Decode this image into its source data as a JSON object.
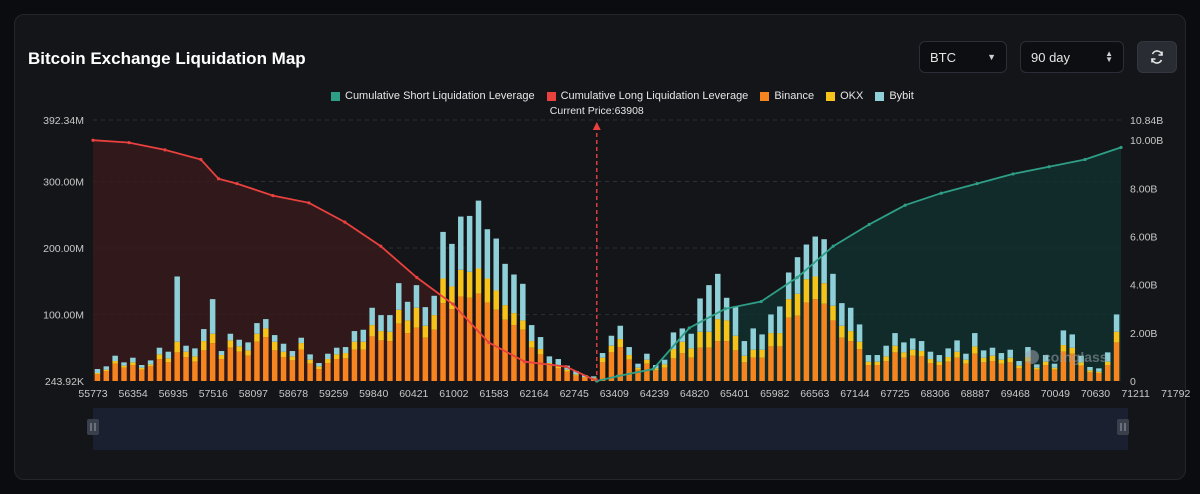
{
  "title": "Bitcoin Exchange Liquidation Map",
  "controls": {
    "symbol": "BTC",
    "period": "90 day",
    "refresh_icon": "refresh-icon"
  },
  "legend": [
    {
      "label": "Cumulative Short Liquidation Leverage",
      "color": "#2e9e86"
    },
    {
      "label": "Cumulative Long Liquidation Leverage",
      "color": "#e8413e"
    },
    {
      "label": "Binance",
      "color": "#f6841f"
    },
    {
      "label": "OKX",
      "color": "#f6c31a"
    },
    {
      "label": "Bybit",
      "color": "#8fd0d8"
    }
  ],
  "watermark": "coinglass",
  "chart_data": {
    "type": "bar",
    "current_price_label": "Current Price:63908",
    "current_price": 63908,
    "x_tick_labels": [
      "55773",
      "56354",
      "56935",
      "57516",
      "58097",
      "58678",
      "59259",
      "59840",
      "60421",
      "61002",
      "61583",
      "62164",
      "62745",
      "63409",
      "64239",
      "64820",
      "65401",
      "65982",
      "66563",
      "67144",
      "67725",
      "68306",
      "68887",
      "69468",
      "70049",
      "70630",
      "71211",
      "71792"
    ],
    "x_range": [
      55773,
      72373
    ],
    "left_axis": {
      "ticks": [
        "392.34M",
        "300.00M",
        "200.00M",
        "100.00M",
        "243.92K"
      ],
      "range": [
        243920,
        392340000
      ]
    },
    "right_axis": {
      "ticks": [
        "10.84B",
        "10.00B",
        "8.00B",
        "6.00B",
        "4.00B",
        "2.00B",
        "0"
      ],
      "range": [
        0,
        10840000000
      ]
    },
    "colors": {
      "binance": "#f6841f",
      "okx": "#f6c31a",
      "bybit": "#8fd0d8",
      "long_line": "#e8413e",
      "short_line": "#2e9e86"
    },
    "long_cumulative_B": [
      [
        55773,
        10.0
      ],
      [
        56354,
        9.9
      ],
      [
        56935,
        9.6
      ],
      [
        57516,
        9.2
      ],
      [
        57800,
        8.4
      ],
      [
        58097,
        8.2
      ],
      [
        58678,
        7.7
      ],
      [
        59259,
        7.4
      ],
      [
        59840,
        6.6
      ],
      [
        60421,
        5.6
      ],
      [
        61002,
        4.3
      ],
      [
        61583,
        3.2
      ],
      [
        62164,
        1.6
      ],
      [
        62745,
        0.8
      ],
      [
        63409,
        0.6
      ],
      [
        63908,
        0.0
      ]
    ],
    "short_cumulative_B": [
      [
        63908,
        0.0
      ],
      [
        64239,
        0.2
      ],
      [
        64820,
        0.5
      ],
      [
        65401,
        2.2
      ],
      [
        65982,
        3.0
      ],
      [
        66563,
        3.3
      ],
      [
        67144,
        4.3
      ],
      [
        67725,
        5.6
      ],
      [
        68306,
        6.5
      ],
      [
        68887,
        7.3
      ],
      [
        69468,
        7.8
      ],
      [
        70049,
        8.2
      ],
      [
        70630,
        8.6
      ],
      [
        71211,
        8.9
      ],
      [
        71792,
        9.2
      ],
      [
        72373,
        9.7
      ]
    ],
    "bars_M": {
      "binance": [
        10,
        15,
        26,
        20,
        24,
        17,
        22,
        33,
        28,
        43,
        36,
        29,
        46,
        57,
        33,
        50,
        44,
        38,
        59,
        66,
        46,
        36,
        31,
        47,
        26,
        18,
        27,
        33,
        34,
        47,
        47,
        67,
        61,
        60,
        86,
        72,
        80,
        65,
        77,
        117,
        108,
        127,
        125,
        131,
        118,
        107,
        92,
        84,
        77,
        50,
        40,
        22,
        19,
        14,
        8,
        5,
        4,
        28,
        43,
        51,
        32,
        17,
        26,
        16,
        20,
        34,
        42,
        35,
        50,
        50,
        60,
        60,
        46,
        28,
        35,
        35,
        52,
        52,
        95,
        98,
        118,
        123,
        116,
        91,
        65,
        60,
        48,
        24,
        24,
        30,
        43,
        35,
        38,
        37,
        27,
        24,
        29,
        35,
        26,
        41,
        28,
        30,
        26,
        28,
        19,
        29,
        17,
        24,
        17,
        44,
        41,
        23,
        13,
        12,
        24,
        58
      ],
      "okx": [
        2,
        2,
        4,
        3,
        4,
        3,
        3,
        7,
        6,
        16,
        8,
        8,
        14,
        14,
        6,
        11,
        8,
        8,
        12,
        13,
        13,
        8,
        6,
        10,
        6,
        4,
        6,
        7,
        8,
        12,
        12,
        17,
        14,
        14,
        21,
        19,
        30,
        18,
        22,
        37,
        34,
        40,
        39,
        38,
        36,
        29,
        22,
        18,
        14,
        10,
        8,
        5,
        4,
        3,
        2,
        1,
        1,
        7,
        10,
        12,
        7,
        3,
        6,
        3,
        5,
        14,
        17,
        14,
        24,
        24,
        33,
        31,
        22,
        10,
        12,
        12,
        20,
        20,
        28,
        33,
        35,
        34,
        31,
        22,
        18,
        15,
        11,
        5,
        5,
        7,
        10,
        8,
        9,
        8,
        6,
        5,
        7,
        9,
        6,
        11,
        7,
        8,
        6,
        7,
        4,
        7,
        3,
        5,
        3,
        10,
        9,
        5,
        3,
        2,
        5,
        16
      ],
      "bybit": [
        6,
        5,
        8,
        5,
        7,
        4,
        6,
        10,
        10,
        98,
        9,
        12,
        18,
        52,
        6,
        10,
        10,
        12,
        16,
        14,
        10,
        12,
        8,
        8,
        8,
        5,
        8,
        10,
        9,
        16,
        18,
        26,
        24,
        25,
        40,
        28,
        34,
        28,
        29,
        70,
        64,
        80,
        84,
        102,
        74,
        78,
        62,
        58,
        55,
        24,
        18,
        10,
        10,
        6,
        5,
        3,
        2,
        7,
        15,
        20,
        12,
        6,
        9,
        5,
        7,
        25,
        20,
        22,
        50,
        70,
        68,
        34,
        44,
        22,
        32,
        23,
        28,
        40,
        40,
        55,
        52,
        60,
        66,
        48,
        34,
        35,
        26,
        10,
        10,
        16,
        19,
        15,
        17,
        15,
        11,
        10,
        13,
        17,
        9,
        20,
        11,
        12,
        10,
        12,
        7,
        15,
        5,
        10,
        6,
        22,
        20,
        10,
        5,
        5,
        14,
        26
      ]
    }
  }
}
